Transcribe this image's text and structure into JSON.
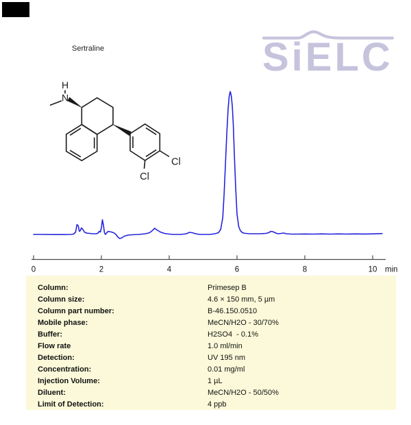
{
  "header": {
    "title": "Sertraline",
    "logo_text": "SiELC",
    "logo_color": "#c6c3dd"
  },
  "molecule": {
    "name": "sertraline chemical structure",
    "atom_labels": {
      "h": "H",
      "n": "N",
      "cl_bottom": "Cl",
      "cl_right": "Cl"
    }
  },
  "chart_data": {
    "type": "line",
    "title": "Sertraline chromatogram",
    "xlabel": "min",
    "ylabel": "",
    "x_axis": {
      "unit": "min",
      "ticks": [
        0,
        2,
        4,
        6,
        8,
        10
      ],
      "range": [
        0,
        10.4
      ]
    },
    "grid": false,
    "legend": false,
    "annotations": {
      "main_peak_time_min": 5.8,
      "main_peak_rel_height": 209
    },
    "series": [
      {
        "name": "UV 195 nm signal",
        "color": "#2323dd",
        "points": [
          [
            0.0,
            0.5
          ],
          [
            0.3,
            0.5
          ],
          [
            0.6,
            0.3
          ],
          [
            0.9,
            0.3
          ],
          [
            1.1,
            0.5
          ],
          [
            1.18,
            1
          ],
          [
            1.24,
            4
          ],
          [
            1.28,
            15
          ],
          [
            1.32,
            13
          ],
          [
            1.35,
            5
          ],
          [
            1.38,
            6
          ],
          [
            1.41,
            10
          ],
          [
            1.45,
            8
          ],
          [
            1.5,
            4
          ],
          [
            1.56,
            2.5
          ],
          [
            1.65,
            2
          ],
          [
            1.75,
            1.5
          ],
          [
            1.85,
            1.5
          ],
          [
            1.9,
            2.5
          ],
          [
            1.94,
            5
          ],
          [
            1.97,
            4
          ],
          [
            2.0,
            10
          ],
          [
            2.03,
            22
          ],
          [
            2.06,
            14
          ],
          [
            2.09,
            3
          ],
          [
            2.12,
            0.5
          ],
          [
            2.16,
            3
          ],
          [
            2.2,
            5
          ],
          [
            2.25,
            4.5
          ],
          [
            2.3,
            4
          ],
          [
            2.36,
            3
          ],
          [
            2.42,
            1
          ],
          [
            2.48,
            -3
          ],
          [
            2.54,
            -5.5
          ],
          [
            2.6,
            -4.5
          ],
          [
            2.68,
            -2
          ],
          [
            2.78,
            -0.5
          ],
          [
            2.9,
            0
          ],
          [
            3.1,
            0.5
          ],
          [
            3.3,
            1.5
          ],
          [
            3.42,
            3
          ],
          [
            3.5,
            6
          ],
          [
            3.57,
            9.5
          ],
          [
            3.64,
            7
          ],
          [
            3.74,
            4
          ],
          [
            3.86,
            2
          ],
          [
            4.0,
            1
          ],
          [
            4.15,
            0.5
          ],
          [
            4.35,
            0.5
          ],
          [
            4.5,
            1.5
          ],
          [
            4.6,
            3.5
          ],
          [
            4.68,
            3
          ],
          [
            4.78,
            1.5
          ],
          [
            4.9,
            0.5
          ],
          [
            5.05,
            0.5
          ],
          [
            5.2,
            0.5
          ],
          [
            5.35,
            1.5
          ],
          [
            5.45,
            3
          ],
          [
            5.52,
            8
          ],
          [
            5.58,
            25
          ],
          [
            5.62,
            60
          ],
          [
            5.66,
            105
          ],
          [
            5.7,
            150
          ],
          [
            5.74,
            185
          ],
          [
            5.77,
            202
          ],
          [
            5.8,
            209
          ],
          [
            5.83,
            203
          ],
          [
            5.86,
            188
          ],
          [
            5.89,
            160
          ],
          [
            5.92,
            120
          ],
          [
            5.96,
            70
          ],
          [
            6.0,
            30
          ],
          [
            6.05,
            12
          ],
          [
            6.1,
            6
          ],
          [
            6.16,
            3
          ],
          [
            6.25,
            2
          ],
          [
            6.4,
            1.5
          ],
          [
            6.55,
            1.5
          ],
          [
            6.7,
            1.5
          ],
          [
            6.85,
            2
          ],
          [
            6.93,
            3
          ],
          [
            7.0,
            5
          ],
          [
            7.06,
            4.5
          ],
          [
            7.12,
            3
          ],
          [
            7.2,
            1.5
          ],
          [
            7.3,
            2
          ],
          [
            7.38,
            2.5
          ],
          [
            7.46,
            1.5
          ],
          [
            7.6,
            1
          ],
          [
            7.8,
            1
          ],
          [
            8.0,
            1.2
          ],
          [
            8.25,
            1
          ],
          [
            8.5,
            1.3
          ],
          [
            8.75,
            1
          ],
          [
            9.0,
            1.3
          ],
          [
            9.25,
            1
          ],
          [
            9.5,
            1.3
          ],
          [
            9.75,
            1.1
          ],
          [
            10.0,
            1.3
          ],
          [
            10.28,
            1.8
          ]
        ]
      }
    ]
  },
  "conditions": {
    "bg_color": "#fbf9d9",
    "rows": [
      {
        "label": "Column:",
        "value": "Primesep B"
      },
      {
        "label": "Column size:",
        "value": "4.6 × 150 mm, 5 µm"
      },
      {
        "label": "Column part number:",
        "value": "B-46.150.0510"
      },
      {
        "label": "Mobile phase:",
        "value": "MeCN/H2O - 30/70%"
      },
      {
        "label": "Buffer:",
        "value": "H2SO4  - 0.1%"
      },
      {
        "label": "Flow rate",
        "value": "1.0 ml/min"
      },
      {
        "label": "Detection:",
        "value": "UV 195 nm"
      },
      {
        "label": "Concentration:",
        "value": "0.01 mg/ml"
      },
      {
        "label": "Injection Volume:",
        "value": "1 µL"
      },
      {
        "label": "Diluent:",
        "value": "MeCN/H2O - 50/50%"
      },
      {
        "label": "Limit of Detection:",
        "value": "4 ppb"
      }
    ]
  }
}
